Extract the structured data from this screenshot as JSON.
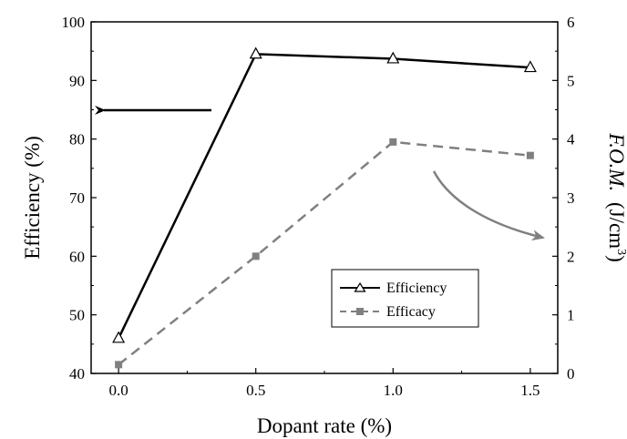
{
  "chart_data": {
    "type": "line",
    "x": [
      0.0,
      0.5,
      1.0,
      1.5
    ],
    "xlabel": "Dopant rate (%)",
    "xlim": [
      -0.1,
      1.6
    ],
    "xticks": [
      "0.0",
      "0.5",
      "1.0",
      "1.5"
    ],
    "ylabel": "Efficiency (%)",
    "ylim": [
      40,
      100
    ],
    "yticks": [
      "40",
      "50",
      "60",
      "70",
      "80",
      "90",
      "100"
    ],
    "y2label_italic": "F.O.M.",
    "y2label_unit": "(J/cm",
    "y2label_sup": "3",
    "y2label_close": ")",
    "y2lim": [
      0,
      6
    ],
    "y2ticks": [
      "0",
      "1",
      "2",
      "3",
      "4",
      "5",
      "6"
    ],
    "series": [
      {
        "name": "Efficiency",
        "axis": "left",
        "values": [
          46,
          94.5,
          93.7,
          92.2
        ],
        "color": "#000000",
        "marker": "triangle-open",
        "line": "solid"
      },
      {
        "name": "Efficacy",
        "axis": "right",
        "values": [
          0.15,
          2.0,
          3.95,
          3.72
        ],
        "color": "#808080",
        "marker": "square-filled",
        "line": "dashed"
      }
    ],
    "legend_position": "lower-right",
    "grid": false,
    "annotations": [
      {
        "kind": "arrow",
        "points_to": "left-axis",
        "color": "#000000"
      },
      {
        "kind": "curved-arrow",
        "points_to": "right-axis",
        "color": "#808080"
      }
    ]
  }
}
